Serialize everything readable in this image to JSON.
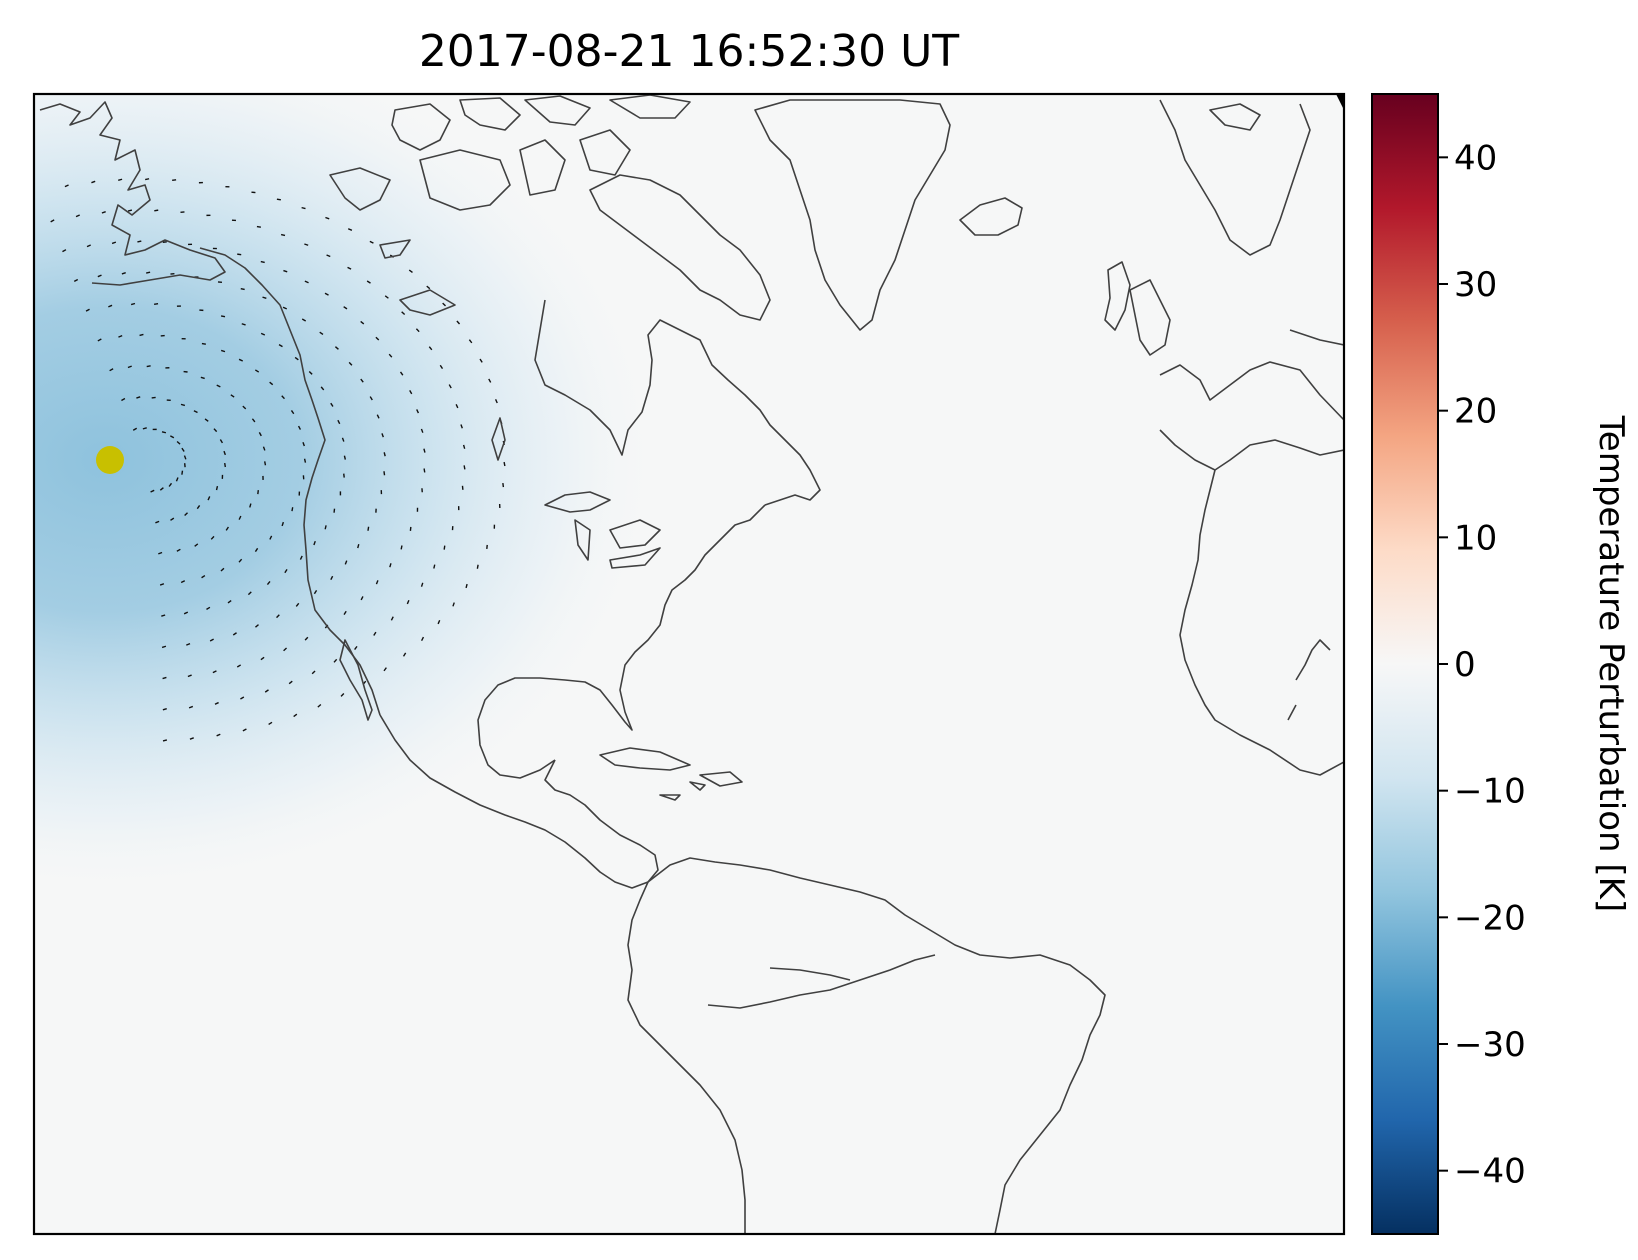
{
  "figure": {
    "title": "2017-08-21 16:52:30 UT"
  },
  "colorbar": {
    "label": "Temperature Perturbation [K]",
    "range": [
      -45,
      45
    ],
    "ticks": [
      40,
      30,
      20,
      10,
      0,
      -10,
      -20,
      -30,
      -40
    ],
    "tick_labels": [
      "40",
      "30",
      "20",
      "10",
      "0",
      "−10",
      "−20",
      "−30",
      "−40"
    ],
    "colormap": "RdBu_r",
    "colors": [
      "#053061",
      "#2166ac",
      "#4393c3",
      "#92c5de",
      "#d1e5f0",
      "#f7f7f7",
      "#fddbc7",
      "#f4a582",
      "#d6604d",
      "#b2182b",
      "#67001f"
    ]
  },
  "map": {
    "background_color": "#f6f7f7",
    "coastline_color": "#404040",
    "marker": {
      "name": "eclipse-center",
      "color": "#c8c000"
    },
    "perturbation_region": {
      "location": "northeast Pacific, off North America",
      "min_value_K": -20
    }
  }
}
